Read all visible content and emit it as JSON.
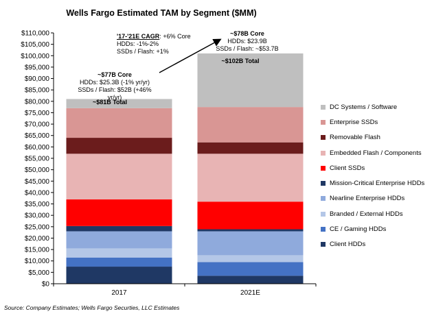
{
  "chart_data": {
    "type": "bar",
    "stacked": true,
    "title": "Wells Fargo Estimated TAM by Segment ($MM)",
    "categories": [
      "2017",
      "2021E"
    ],
    "ylim": [
      0,
      110000
    ],
    "yticks": [
      0,
      5000,
      10000,
      15000,
      20000,
      25000,
      30000,
      35000,
      40000,
      45000,
      50000,
      55000,
      60000,
      65000,
      70000,
      75000,
      80000,
      85000,
      90000,
      95000,
      100000,
      105000,
      110000
    ],
    "ytick_labels": [
      "$0",
      "$5,000",
      "$10,000",
      "$15,000",
      "$20,000",
      "$25,000",
      "$30,000",
      "$35,000",
      "$40,000",
      "$45,000",
      "$50,000",
      "$55,000",
      "$60,000",
      "$65,000",
      "$70,000",
      "$75,000",
      "$80,000",
      "$85,000",
      "$90,000",
      "$95,000",
      "$100,000",
      "$105,000",
      "$110,000"
    ],
    "series": [
      {
        "name": "Client HDDs",
        "color": "#1f3864",
        "values": [
          7500,
          3500
        ]
      },
      {
        "name": "CE / Gaming HDDs",
        "color": "#4472c4",
        "values": [
          4000,
          6000
        ]
      },
      {
        "name": "Branded / External HDDs",
        "color": "#b4c7e7",
        "values": [
          4000,
          3000
        ]
      },
      {
        "name": "Nearline Enterprise HDDs",
        "color": "#8faadc",
        "values": [
          7500,
          10500
        ]
      },
      {
        "name": "Mission-Critical Enterprise HDDs",
        "color": "#203864",
        "values": [
          2300,
          900
        ]
      },
      {
        "name": "Client SSDs",
        "color": "#ff0000",
        "values": [
          11700,
          12100
        ]
      },
      {
        "name": "Embedded Flash / Components",
        "color": "#e8b4b4",
        "values": [
          20000,
          21000
        ]
      },
      {
        "name": "Removable Flash",
        "color": "#6b1c1c",
        "values": [
          7000,
          5000
        ]
      },
      {
        "name": "Enterprise SSDs",
        "color": "#d99694",
        "values": [
          13000,
          15500
        ]
      },
      {
        "name": "DC Systems / Software",
        "color": "#bfbfbf",
        "values": [
          4000,
          23500
        ]
      }
    ],
    "legend_placement": "right",
    "totals": [
      "~$81B Total",
      "~$102B Total"
    ],
    "annotations": {
      "cagr_heading": "'17-'21E CAGR",
      "cagr_core": ": +6% Core",
      "cagr_hdd": "HDDs: -1%-2%",
      "cagr_ssd": "SSDs / Flash: +1%",
      "core_2017": "~$77B Core",
      "hdd_2017": "HDDs: $25.3B (-1% yr/yr)",
      "ssd_2017": "SSDs / Flash: $52B (+46% yr/yr)",
      "core_2021": "~$78B Core",
      "hdd_2021": "HDDs: $23.9B",
      "ssd_2021": "SSDs / Flash: ~$53.7B"
    },
    "source": "Source: Company Estimates; Wells Fargo Securties, LLC Estimates"
  }
}
